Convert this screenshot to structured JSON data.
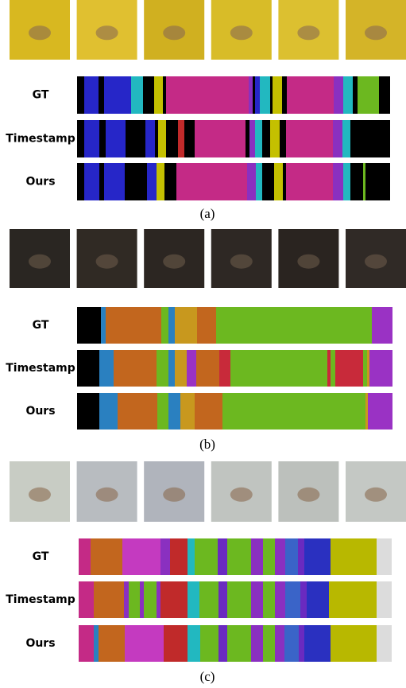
{
  "panels": [
    {
      "rows": [
        {
          "label": "GT"
        },
        {
          "label": "Timestamp"
        },
        {
          "label": "Ours"
        }
      ],
      "caption": "(a)"
    },
    {
      "rows": [
        {
          "label": "GT"
        },
        {
          "label": "Timestamp"
        },
        {
          "label": "Ours"
        }
      ],
      "caption": "(b)"
    },
    {
      "rows": [
        {
          "label": "GT"
        },
        {
          "label": "Timestamp"
        },
        {
          "label": "Ours"
        }
      ],
      "caption": "(c)"
    }
  ]
}
